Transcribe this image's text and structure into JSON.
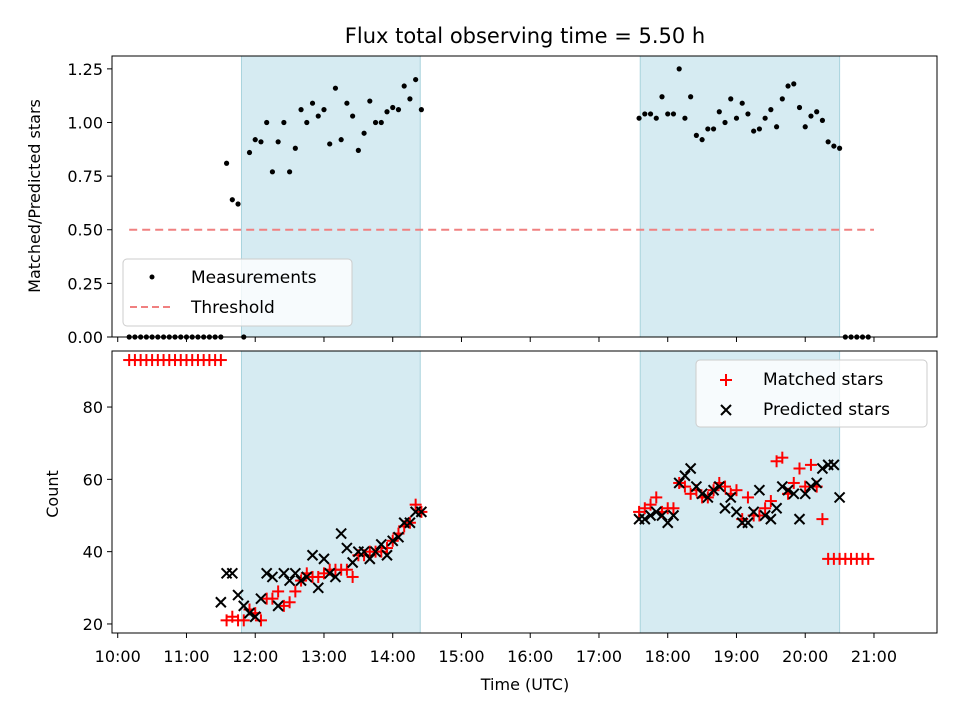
{
  "chart_data": [
    {
      "type": "scatter",
      "title": "Flux total observing time = 5.50 h",
      "xlabel": "",
      "ylabel": "Matched/Predicted stars",
      "xlim": [
        "09:55",
        "21:55"
      ],
      "ylim": [
        0,
        1.31
      ],
      "yticks": [
        "0.00",
        "0.25",
        "0.50",
        "0.75",
        "1.00",
        "1.25"
      ],
      "shaded_intervals": [
        [
          "11:48",
          "14:24"
        ],
        [
          "17:36",
          "20:30"
        ]
      ],
      "legend": {
        "position": "lower-left",
        "entries": [
          "Measurements",
          "Threshold"
        ]
      },
      "threshold": {
        "name": "Threshold",
        "value": 0.5,
        "x": [
          "10:10",
          "21:00"
        ]
      },
      "series": [
        {
          "name": "Measurements",
          "x": [
            "10:10",
            "10:15",
            "10:20",
            "10:25",
            "10:30",
            "10:35",
            "10:40",
            "10:45",
            "10:50",
            "10:55",
            "11:00",
            "11:05",
            "11:10",
            "11:15",
            "11:20",
            "11:25",
            "11:30",
            "11:35",
            "11:40",
            "11:45",
            "11:50",
            "11:55",
            "12:00",
            "12:05",
            "12:10",
            "12:15",
            "12:20",
            "12:25",
            "12:30",
            "12:35",
            "12:40",
            "12:45",
            "12:50",
            "12:55",
            "13:00",
            "13:05",
            "13:10",
            "13:15",
            "13:20",
            "13:25",
            "13:30",
            "13:35",
            "13:40",
            "13:45",
            "13:50",
            "13:55",
            "14:00",
            "14:05",
            "14:10",
            "14:15",
            "14:20",
            "14:25",
            "17:35",
            "17:40",
            "17:45",
            "17:50",
            "17:55",
            "18:00",
            "18:05",
            "18:10",
            "18:15",
            "18:20",
            "18:25",
            "18:30",
            "18:35",
            "18:40",
            "18:45",
            "18:50",
            "18:55",
            "19:00",
            "19:05",
            "19:10",
            "19:15",
            "19:20",
            "19:25",
            "19:30",
            "19:35",
            "19:40",
            "19:45",
            "19:50",
            "19:55",
            "20:00",
            "20:05",
            "20:10",
            "20:15",
            "20:20",
            "20:25",
            "20:30",
            "20:35",
            "20:40",
            "20:45",
            "20:50",
            "20:55"
          ],
          "y": [
            0,
            0,
            0,
            0,
            0,
            0,
            0,
            0,
            0,
            0,
            0,
            0,
            0,
            0,
            0,
            0,
            0,
            0.81,
            0.64,
            0.62,
            0,
            0.86,
            0.92,
            0.91,
            1.0,
            0.77,
            0.91,
            1.0,
            0.77,
            0.88,
            1.06,
            1.0,
            1.09,
            1.03,
            1.06,
            0.9,
            1.16,
            0.92,
            1.09,
            1.03,
            0.87,
            0.95,
            1.1,
            1.0,
            1.0,
            1.05,
            1.07,
            1.06,
            1.17,
            1.11,
            1.2,
            1.06,
            1.02,
            1.04,
            1.04,
            1.02,
            1.12,
            1.04,
            1.04,
            1.25,
            1.02,
            1.12,
            0.94,
            0.92,
            0.97,
            0.97,
            1.05,
            1.0,
            1.11,
            1.02,
            1.09,
            1.04,
            0.96,
            0.97,
            1.02,
            1.06,
            0.98,
            1.11,
            1.17,
            1.18,
            1.07,
            0.98,
            1.03,
            1.05,
            1.01,
            0.91,
            0.89,
            0.88,
            0,
            0,
            0,
            0,
            0
          ]
        }
      ]
    },
    {
      "type": "scatter",
      "title": "",
      "xlabel": "Time (UTC)",
      "ylabel": "Count",
      "xlim": [
        "09:55",
        "21:55"
      ],
      "ylim": [
        17.5,
        95.5
      ],
      "yticks": [
        "20",
        "40",
        "60",
        "80"
      ],
      "xticks": [
        "10:00",
        "11:00",
        "12:00",
        "13:00",
        "14:00",
        "15:00",
        "16:00",
        "17:00",
        "18:00",
        "19:00",
        "20:00",
        "21:00"
      ],
      "shaded_intervals": [
        [
          "11:48",
          "14:24"
        ],
        [
          "17:36",
          "20:30"
        ]
      ],
      "legend": {
        "position": "upper-right",
        "entries": [
          "Matched stars",
          "Predicted stars"
        ]
      },
      "series": [
        {
          "name": "Matched stars",
          "x": [
            "10:10",
            "10:15",
            "10:20",
            "10:25",
            "10:30",
            "10:35",
            "10:40",
            "10:45",
            "10:50",
            "10:55",
            "11:00",
            "11:05",
            "11:10",
            "11:15",
            "11:20",
            "11:25",
            "11:30",
            "11:35",
            "11:40",
            "11:45",
            "11:50",
            "11:55",
            "12:00",
            "12:05",
            "12:10",
            "12:15",
            "12:20",
            "12:25",
            "12:30",
            "12:35",
            "12:40",
            "12:45",
            "12:50",
            "12:55",
            "13:00",
            "13:05",
            "13:10",
            "13:15",
            "13:20",
            "13:25",
            "13:30",
            "13:35",
            "13:40",
            "13:45",
            "13:50",
            "13:55",
            "14:00",
            "14:05",
            "14:10",
            "14:15",
            "14:20",
            "14:25",
            "17:35",
            "17:40",
            "17:45",
            "17:50",
            "17:55",
            "18:00",
            "18:05",
            "18:10",
            "18:15",
            "18:20",
            "18:25",
            "18:30",
            "18:35",
            "18:40",
            "18:45",
            "18:50",
            "18:55",
            "19:00",
            "19:05",
            "19:10",
            "19:15",
            "19:20",
            "19:25",
            "19:30",
            "19:35",
            "19:40",
            "19:45",
            "19:50",
            "19:55",
            "20:00",
            "20:05",
            "20:10",
            "20:15",
            "20:20",
            "20:25",
            "20:30",
            "20:35",
            "20:40",
            "20:45",
            "20:50",
            "20:55"
          ],
          "y": [
            93,
            93,
            93,
            93,
            93,
            93,
            93,
            93,
            93,
            93,
            93,
            93,
            93,
            93,
            93,
            93,
            93,
            21,
            22,
            21,
            21,
            24,
            23,
            21,
            27,
            27,
            29,
            25,
            26,
            29,
            32,
            34,
            33,
            33,
            34,
            35,
            35,
            35,
            35,
            33,
            39,
            39,
            40,
            40,
            40,
            41,
            43,
            45,
            47,
            48,
            53,
            51,
            51,
            52,
            53,
            55,
            51,
            52,
            52,
            59,
            58,
            56,
            57,
            55,
            55,
            57,
            59,
            58,
            56,
            57,
            49,
            55,
            50,
            50,
            52,
            54,
            65,
            66,
            56,
            59,
            63,
            58,
            64,
            58,
            49,
            38,
            38,
            38,
            38,
            38,
            38,
            38,
            38
          ]
        },
        {
          "name": "Predicted stars",
          "x": [
            "11:30",
            "11:35",
            "11:40",
            "11:45",
            "11:50",
            "11:55",
            "12:00",
            "12:05",
            "12:10",
            "12:15",
            "12:20",
            "12:25",
            "12:30",
            "12:35",
            "12:40",
            "12:45",
            "12:50",
            "12:55",
            "13:00",
            "13:05",
            "13:10",
            "13:15",
            "13:20",
            "13:25",
            "13:30",
            "13:35",
            "13:40",
            "13:45",
            "13:50",
            "13:55",
            "14:00",
            "14:05",
            "14:10",
            "14:15",
            "14:20",
            "14:25",
            "17:35",
            "17:40",
            "17:45",
            "17:50",
            "17:55",
            "18:00",
            "18:05",
            "18:10",
            "18:15",
            "18:20",
            "18:25",
            "18:30",
            "18:35",
            "18:40",
            "18:45",
            "18:50",
            "18:55",
            "19:00",
            "19:05",
            "19:10",
            "19:15",
            "19:20",
            "19:25",
            "19:30",
            "19:35",
            "19:40",
            "19:45",
            "19:50",
            "19:55",
            "20:00",
            "20:05",
            "20:10",
            "20:15",
            "20:20",
            "20:25",
            "20:30"
          ],
          "y": [
            26,
            34,
            34,
            28,
            25,
            23,
            22,
            27,
            34,
            33,
            25,
            34,
            32,
            34,
            32,
            33,
            39,
            30,
            38,
            34,
            33,
            45,
            41,
            37,
            40,
            40,
            38,
            40,
            42,
            39,
            43,
            44,
            48,
            48,
            51,
            51,
            49,
            49,
            50,
            51,
            50,
            48,
            50,
            59,
            61,
            63,
            58,
            56,
            55,
            57,
            58,
            52,
            55,
            51,
            48,
            48,
            51,
            57,
            50,
            49,
            52,
            58,
            57,
            56,
            49,
            56,
            58,
            59,
            63,
            64,
            64,
            55
          ]
        }
      ]
    }
  ]
}
